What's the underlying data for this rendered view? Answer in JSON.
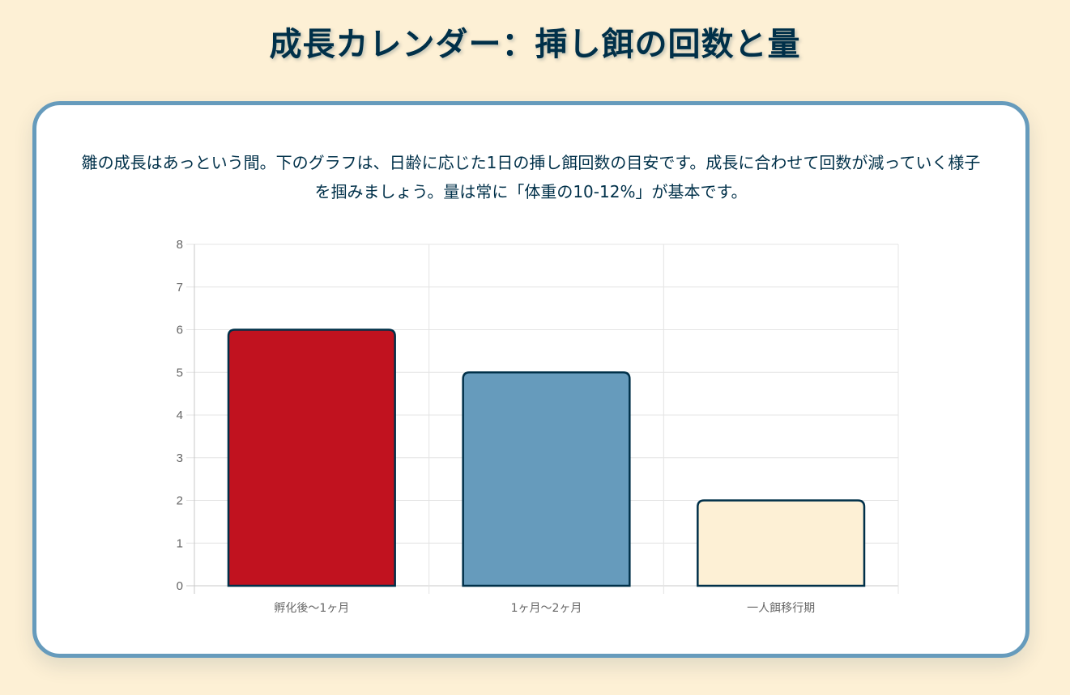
{
  "page": {
    "title": "成長カレンダー：挿し餌の回数と量",
    "description": "雛の成長はあっという間。下のグラフは、日齢に応じた1日の挿し餌回数の目安です。成長に合わせて回数が減っていく様子を掴みましょう。量は常に「体重の10-12%」が基本です。"
  },
  "colors": {
    "background": "#fdf0d5",
    "navy": "#003049",
    "blue": "#669bbc",
    "red": "#c1121f",
    "cream": "#fdf0d5",
    "grid": "#e4e4e4",
    "tick": "#666666"
  },
  "chart_data": {
    "type": "bar",
    "categories": [
      "孵化後〜1ヶ月",
      "1ヶ月〜2ヶ月",
      "一人餌移行期"
    ],
    "values": [
      6,
      5,
      2
    ],
    "bar_colors": [
      "#c1121f",
      "#669bbc",
      "#fdf0d5"
    ],
    "bar_border_color": "#003049",
    "ylim": [
      0,
      8
    ],
    "yticks": [
      "0",
      "1",
      "2",
      "3",
      "4",
      "5",
      "6",
      "7",
      "8"
    ],
    "grid": true,
    "legend": "none"
  }
}
